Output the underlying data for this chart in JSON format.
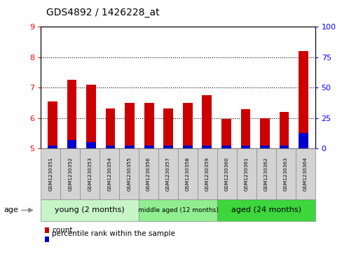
{
  "title": "GDS4892 / 1426228_at",
  "samples": [
    "GSM1230351",
    "GSM1230352",
    "GSM1230353",
    "GSM1230354",
    "GSM1230355",
    "GSM1230356",
    "GSM1230357",
    "GSM1230358",
    "GSM1230359",
    "GSM1230360",
    "GSM1230361",
    "GSM1230362",
    "GSM1230363",
    "GSM1230364"
  ],
  "count_values": [
    6.55,
    7.25,
    7.1,
    6.32,
    6.5,
    6.5,
    6.32,
    6.5,
    6.75,
    5.98,
    6.3,
    6.0,
    6.2,
    8.2
  ],
  "percentile_values": [
    2.5,
    7.0,
    5.5,
    2.5,
    2.5,
    2.5,
    2.5,
    2.5,
    2.5,
    2.5,
    2.5,
    2.5,
    2.5,
    13.0
  ],
  "ylim_left": [
    5,
    9
  ],
  "ylim_right": [
    0,
    100
  ],
  "yticks_left": [
    5,
    6,
    7,
    8,
    9
  ],
  "yticks_right": [
    0,
    25,
    50,
    75,
    100
  ],
  "groups": [
    {
      "label": "young (2 months)",
      "start": 0,
      "end": 5,
      "color": "#c8f5c8"
    },
    {
      "label": "middle aged (12 months)",
      "start": 5,
      "end": 9,
      "color": "#90ee90"
    },
    {
      "label": "aged (24 months)",
      "start": 9,
      "end": 14,
      "color": "#3dd63d"
    }
  ],
  "bar_width": 0.5,
  "count_color": "#CC0000",
  "percentile_color": "#0000CC",
  "bar_bottom": 5.0,
  "legend_count_label": "count",
  "legend_percentile_label": "percentile rank within the sample",
  "title_fontsize": 10,
  "tick_fontsize": 8,
  "group_label_fontsize": 8,
  "background_color": "#ffffff",
  "sample_box_color": "#d3d3d3",
  "gridline_color": "black",
  "gridline_style": ":"
}
